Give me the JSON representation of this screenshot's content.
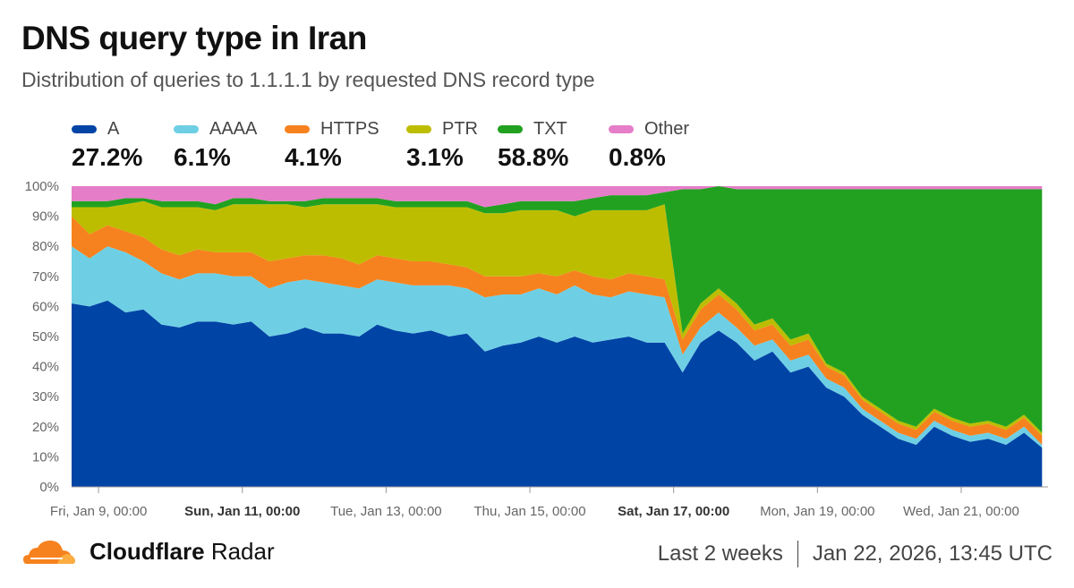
{
  "title": "DNS query type in Iran",
  "subtitle": "Distribution of queries to 1.1.1.1 by requested DNS record type",
  "legend": [
    {
      "name": "A",
      "value": "27.2%",
      "color": "#0044a6"
    },
    {
      "name": "AAAA",
      "value": "6.1%",
      "color": "#6ecfe4"
    },
    {
      "name": "HTTPS",
      "value": "4.1%",
      "color": "#f6821f"
    },
    {
      "name": "PTR",
      "value": "3.1%",
      "color": "#bdbd00"
    },
    {
      "name": "TXT",
      "value": "58.8%",
      "color": "#22a121"
    },
    {
      "name": "Other",
      "value": "0.8%",
      "color": "#e57dc8"
    }
  ],
  "footer": {
    "brand_bold": "Cloudflare",
    "brand_light": "Radar",
    "range": "Last 2 weeks",
    "timestamp": "Jan 22, 2026, 13:45 UTC"
  },
  "chart_data": {
    "type": "area",
    "stacked": true,
    "ylabel": "",
    "ylim": [
      0,
      100
    ],
    "y_ticks": [
      "0%",
      "10%",
      "20%",
      "30%",
      "40%",
      "50%",
      "60%",
      "70%",
      "80%",
      "90%",
      "100%"
    ],
    "xlim_hours": [
      0,
      326
    ],
    "x_ticks": [
      {
        "label": "Fri, Jan 9, 00:00",
        "hour": 9,
        "bold": false
      },
      {
        "label": "Sun, Jan 11, 00:00",
        "hour": 57,
        "bold": true
      },
      {
        "label": "Tue, Jan 13, 00:00",
        "hour": 105,
        "bold": false
      },
      {
        "label": "Thu, Jan 15, 00:00",
        "hour": 153,
        "bold": false
      },
      {
        "label": "Sat, Jan 17, 00:00",
        "hour": 201,
        "bold": true
      },
      {
        "label": "Mon, Jan 19, 00:00",
        "hour": 249,
        "bold": false
      },
      {
        "label": "Wed, Jan 21, 00:00",
        "hour": 297,
        "bold": false
      }
    ],
    "x_hours": [
      0,
      6,
      12,
      18,
      24,
      30,
      36,
      42,
      48,
      54,
      60,
      66,
      72,
      78,
      84,
      90,
      96,
      102,
      108,
      114,
      120,
      126,
      132,
      138,
      144,
      150,
      156,
      162,
      168,
      174,
      180,
      186,
      192,
      198,
      204,
      210,
      216,
      222,
      228,
      234,
      240,
      246,
      252,
      258,
      264,
      270,
      276,
      282,
      288,
      294,
      300,
      306,
      312,
      318,
      324
    ],
    "series": [
      {
        "name": "A",
        "color": "#0044a6",
        "values": [
          61,
          60,
          62,
          58,
          59,
          54,
          53,
          55,
          55,
          54,
          55,
          50,
          51,
          53,
          51,
          51,
          50,
          54,
          52,
          51,
          52,
          50,
          51,
          45,
          47,
          48,
          50,
          48,
          50,
          48,
          49,
          50,
          48,
          48,
          38,
          48,
          52,
          48,
          42,
          45,
          38,
          40,
          33,
          30,
          24,
          20,
          16,
          14,
          20,
          17,
          15,
          16,
          14,
          18,
          13
        ]
      },
      {
        "name": "AAAA",
        "color": "#6ecfe4",
        "values": [
          19,
          16,
          18,
          20,
          16,
          17,
          16,
          16,
          16,
          16,
          15,
          16,
          17,
          16,
          17,
          16,
          16,
          15,
          16,
          16,
          15,
          17,
          15,
          18,
          17,
          16,
          16,
          16,
          17,
          16,
          14,
          15,
          16,
          15,
          6,
          5,
          6,
          5,
          5,
          4,
          4,
          4,
          3,
          3,
          2,
          2,
          2,
          2,
          2,
          2,
          2,
          2,
          2,
          2,
          1
        ]
      },
      {
        "name": "HTTPS",
        "color": "#f6821f",
        "values": [
          10,
          8,
          7,
          7,
          8,
          8,
          8,
          8,
          7,
          8,
          8,
          9,
          8,
          8,
          9,
          9,
          8,
          8,
          8,
          8,
          8,
          7,
          7,
          7,
          6,
          6,
          5,
          6,
          5,
          6,
          6,
          6,
          6,
          6,
          5,
          6,
          6,
          6,
          5,
          5,
          5,
          5,
          4,
          4,
          3,
          3,
          3,
          3,
          3,
          3,
          3,
          3,
          3,
          3,
          3
        ]
      },
      {
        "name": "PTR",
        "color": "#bdbd00",
        "values": [
          3,
          9,
          6,
          9,
          12,
          14,
          16,
          14,
          14,
          16,
          16,
          19,
          18,
          16,
          17,
          18,
          20,
          17,
          17,
          18,
          18,
          19,
          20,
          21,
          21,
          22,
          21,
          22,
          18,
          22,
          23,
          21,
          22,
          25,
          2,
          2,
          2,
          2,
          2,
          2,
          2,
          2,
          1,
          1,
          1,
          1,
          1,
          1,
          1,
          1,
          1,
          1,
          1,
          1,
          1
        ]
      },
      {
        "name": "TXT",
        "color": "#22a121",
        "values": [
          2,
          2,
          2,
          2,
          1,
          2,
          2,
          2,
          2,
          2,
          2,
          1,
          1,
          2,
          2,
          2,
          2,
          2,
          2,
          2,
          2,
          2,
          2,
          2,
          3,
          3,
          3,
          3,
          5,
          4,
          5,
          5,
          5,
          4,
          48,
          38,
          34,
          38,
          45,
          43,
          50,
          48,
          58,
          61,
          69,
          73,
          77,
          79,
          73,
          76,
          78,
          77,
          79,
          75,
          81
        ]
      },
      {
        "name": "Other",
        "color": "#e57dc8",
        "values": [
          5,
          5,
          5,
          4,
          4,
          5,
          5,
          5,
          6,
          4,
          4,
          5,
          5,
          5,
          4,
          4,
          4,
          4,
          5,
          5,
          5,
          5,
          5,
          7,
          6,
          5,
          5,
          5,
          5,
          4,
          3,
          3,
          3,
          2,
          1,
          1,
          0,
          1,
          1,
          1,
          1,
          1,
          1,
          1,
          1,
          1,
          1,
          1,
          1,
          1,
          1,
          1,
          1,
          1,
          1
        ]
      }
    ]
  }
}
